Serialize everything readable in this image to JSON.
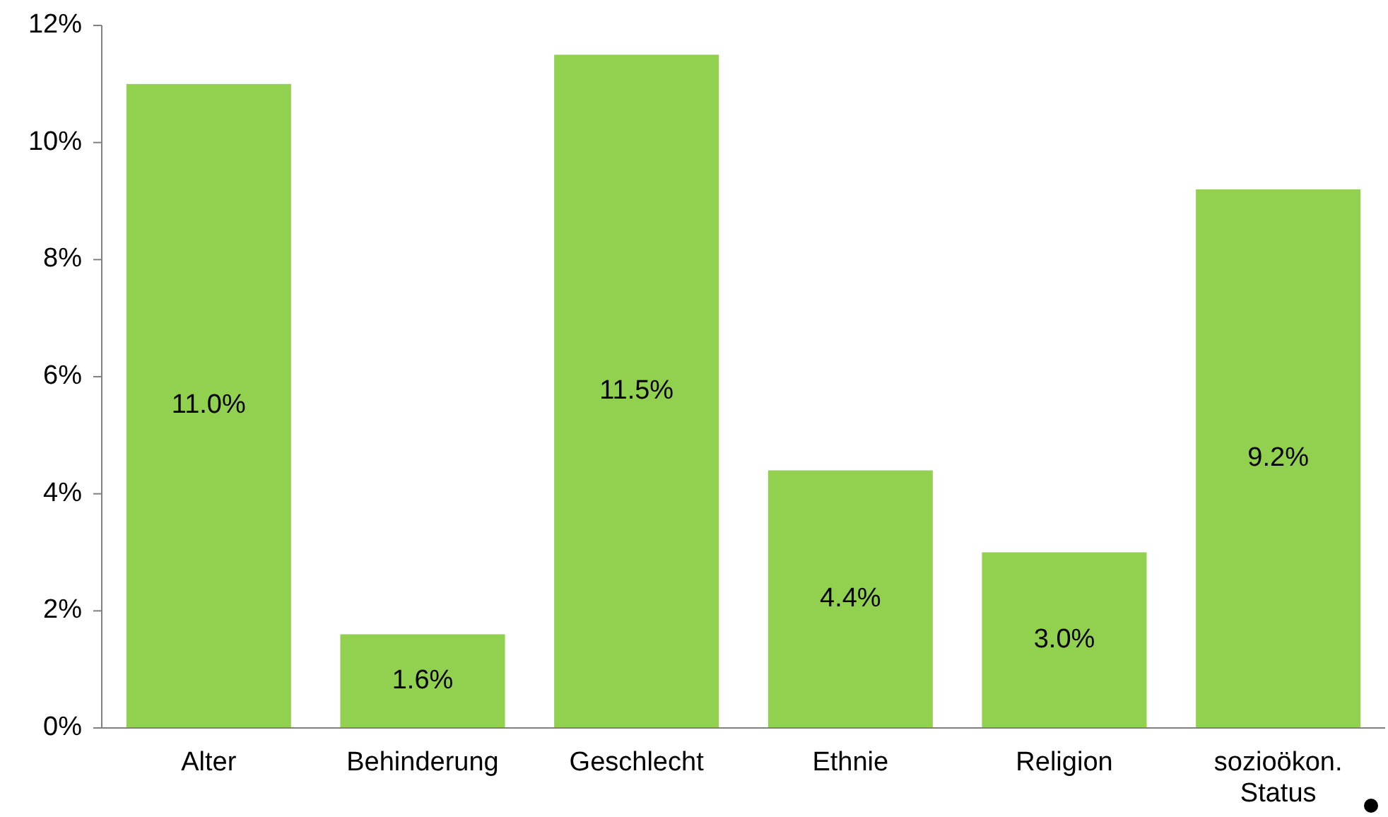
{
  "chart_data": {
    "type": "bar",
    "categories": [
      "Alter",
      "Behinderung",
      "Geschlecht",
      "Ethnie",
      "Religion",
      "sozioökon. Status"
    ],
    "values": [
      11.0,
      1.6,
      11.5,
      4.4,
      3.0,
      9.2
    ],
    "value_labels": [
      "11.0%",
      "1.6%",
      "11.5%",
      "4.4%",
      "3.0%",
      "9.2%"
    ],
    "color": "#92d050",
    "ylim": [
      0,
      12
    ],
    "yticks": [
      {
        "value": 0,
        "label": "0%"
      },
      {
        "value": 2,
        "label": "2%"
      },
      {
        "value": 4,
        "label": "4%"
      },
      {
        "value": 6,
        "label": "6%"
      },
      {
        "value": 8,
        "label": "8%"
      },
      {
        "value": 10,
        "label": "10%"
      },
      {
        "value": 12,
        "label": "12%"
      }
    ],
    "grid": false
  }
}
